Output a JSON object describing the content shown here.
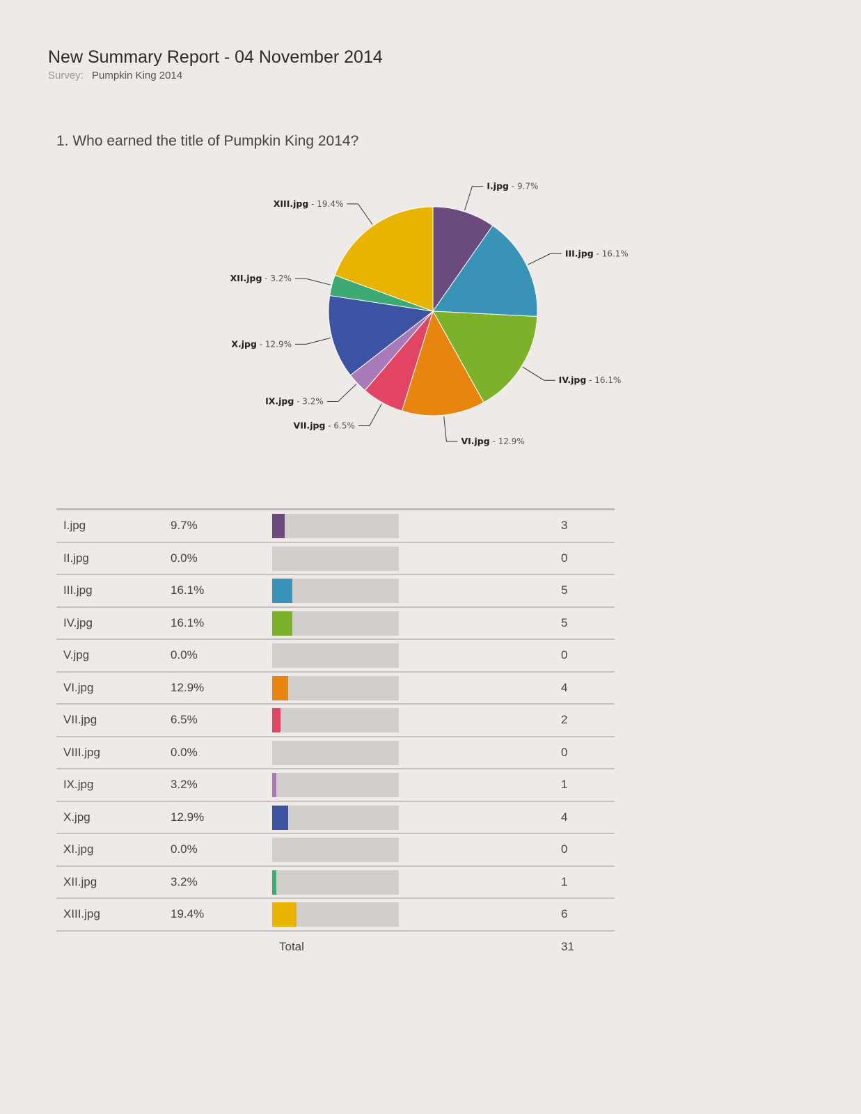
{
  "report": {
    "title": "New Summary Report - 04 November 2014",
    "survey_label": "Survey:",
    "survey_name": "Pumpkin King 2014"
  },
  "question": "1. Who earned the title of Pumpkin King 2014?",
  "chart_data": {
    "type": "pie",
    "title": "",
    "slices": [
      {
        "label": "I.jpg",
        "value": 9.7,
        "display": "9.7%",
        "color": "#6b4a7e"
      },
      {
        "label": "III.jpg",
        "value": 16.1,
        "display": "16.1%",
        "color": "#3993b7"
      },
      {
        "label": "IV.jpg",
        "value": 16.1,
        "display": "16.1%",
        "color": "#7db12a"
      },
      {
        "label": "VI.jpg",
        "value": 12.9,
        "display": "12.9%",
        "color": "#e8850f"
      },
      {
        "label": "VII.jpg",
        "value": 6.5,
        "display": "6.5%",
        "color": "#e24563"
      },
      {
        "label": "IX.jpg",
        "value": 3.2,
        "display": "3.2%",
        "color": "#a87ab8"
      },
      {
        "label": "X.jpg",
        "value": 12.9,
        "display": "12.9%",
        "color": "#3c52a2"
      },
      {
        "label": "XII.jpg",
        "value": 3.2,
        "display": "3.2%",
        "color": "#3eaa73"
      },
      {
        "label": "XIII.jpg",
        "value": 19.4,
        "display": "19.4%",
        "color": "#e9b400"
      }
    ],
    "legend": "none"
  },
  "table": {
    "rows": [
      {
        "label": "I.jpg",
        "percent": "9.7%",
        "fraction": 0.097,
        "count": "3",
        "color": "#6b4a7e"
      },
      {
        "label": "II.jpg",
        "percent": "0.0%",
        "fraction": 0.0,
        "count": "0",
        "color": "#999999"
      },
      {
        "label": "III.jpg",
        "percent": "16.1%",
        "fraction": 0.161,
        "count": "5",
        "color": "#3993b7"
      },
      {
        "label": "IV.jpg",
        "percent": "16.1%",
        "fraction": 0.161,
        "count": "5",
        "color": "#7db12a"
      },
      {
        "label": "V.jpg",
        "percent": "0.0%",
        "fraction": 0.0,
        "count": "0",
        "color": "#999999"
      },
      {
        "label": "VI.jpg",
        "percent": "12.9%",
        "fraction": 0.129,
        "count": "4",
        "color": "#e8850f"
      },
      {
        "label": "VII.jpg",
        "percent": "6.5%",
        "fraction": 0.065,
        "count": "2",
        "color": "#e24563"
      },
      {
        "label": "VIII.jpg",
        "percent": "0.0%",
        "fraction": 0.0,
        "count": "0",
        "color": "#999999"
      },
      {
        "label": "IX.jpg",
        "percent": "3.2%",
        "fraction": 0.032,
        "count": "1",
        "color": "#a87ab8"
      },
      {
        "label": "X.jpg",
        "percent": "12.9%",
        "fraction": 0.129,
        "count": "4",
        "color": "#3c52a2"
      },
      {
        "label": "XI.jpg",
        "percent": "0.0%",
        "fraction": 0.0,
        "count": "0",
        "color": "#999999"
      },
      {
        "label": "XII.jpg",
        "percent": "3.2%",
        "fraction": 0.032,
        "count": "1",
        "color": "#3eaa73"
      },
      {
        "label": "XIII.jpg",
        "percent": "19.4%",
        "fraction": 0.194,
        "count": "6",
        "color": "#e9b400"
      }
    ],
    "total_label": "Total",
    "total_value": "31"
  }
}
